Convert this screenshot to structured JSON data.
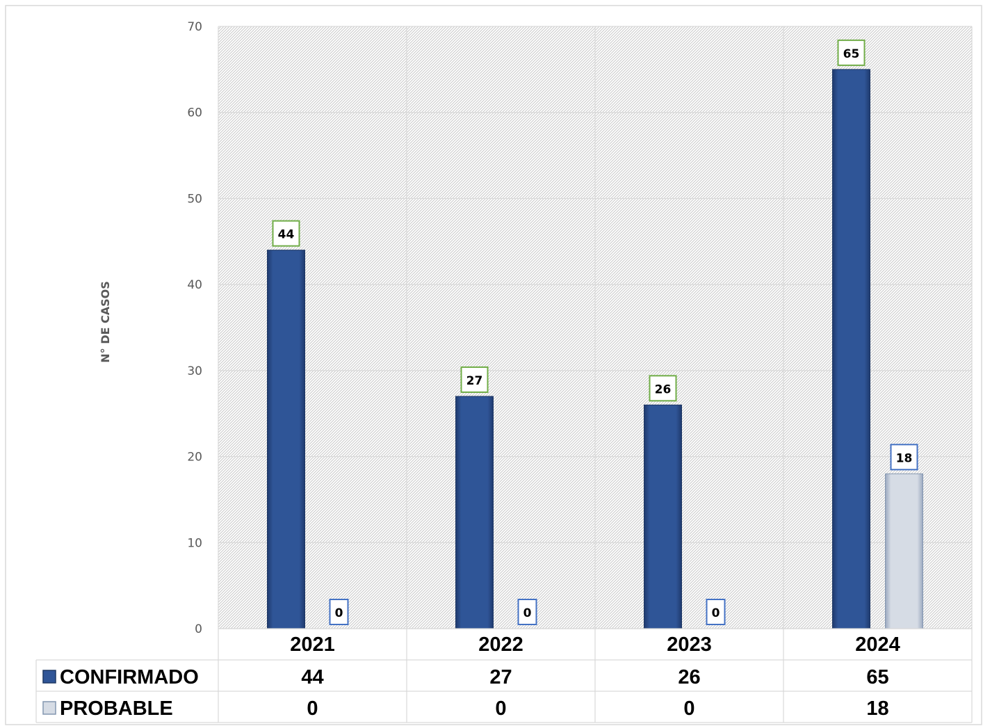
{
  "chart_data": {
    "type": "bar",
    "title": "",
    "xlabel": "",
    "ylabel": "N° DE CASOS",
    "ylim": [
      0,
      70
    ],
    "yticks": [
      0,
      10,
      20,
      30,
      40,
      50,
      60,
      70
    ],
    "grid": true,
    "legend": "data-table-below",
    "categories": [
      "2021",
      "2022",
      "2023",
      "2024"
    ],
    "series": [
      {
        "name": "CONFIRMADO",
        "values": [
          44,
          27,
          26,
          65
        ],
        "color": "#2F5597",
        "label_border": "#70AD47"
      },
      {
        "name": "PROBABLE",
        "values": [
          0,
          0,
          0,
          18
        ],
        "color": "#D6DCE5",
        "label_border": "#4472C4"
      }
    ]
  }
}
